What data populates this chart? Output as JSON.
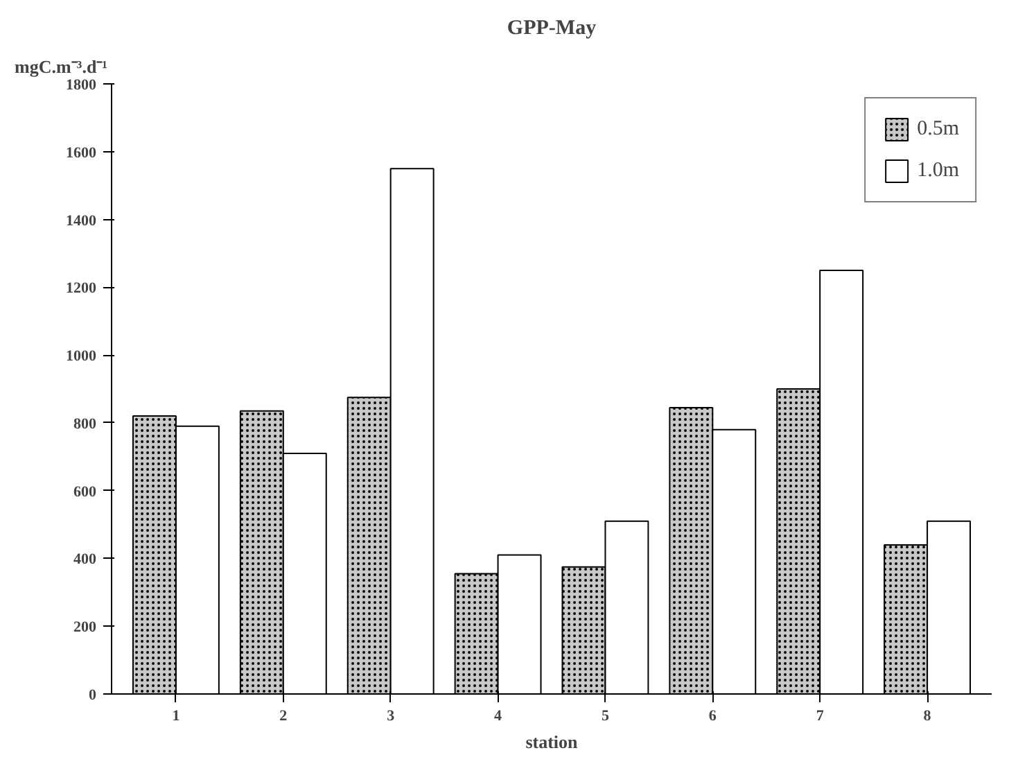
{
  "chart_data": {
    "type": "bar",
    "title": "GPP-May",
    "ylabel": "mgC.m⁻³.d⁻¹",
    "xlabel": "station",
    "categories": [
      "1",
      "2",
      "3",
      "4",
      "5",
      "6",
      "7",
      "8"
    ],
    "series": [
      {
        "name": "0.5m",
        "color": "#c8c8c8",
        "values": [
          820,
          835,
          875,
          355,
          375,
          845,
          900,
          440
        ]
      },
      {
        "name": "1.0m",
        "color": "#ffffff",
        "values": [
          790,
          710,
          1550,
          410,
          510,
          780,
          1250,
          510
        ]
      }
    ],
    "ylim": [
      0,
      1800
    ],
    "yticks": [
      0,
      200,
      400,
      600,
      800,
      1000,
      1200,
      1400,
      1600,
      1800
    ],
    "grid": false,
    "legend": "top right"
  }
}
